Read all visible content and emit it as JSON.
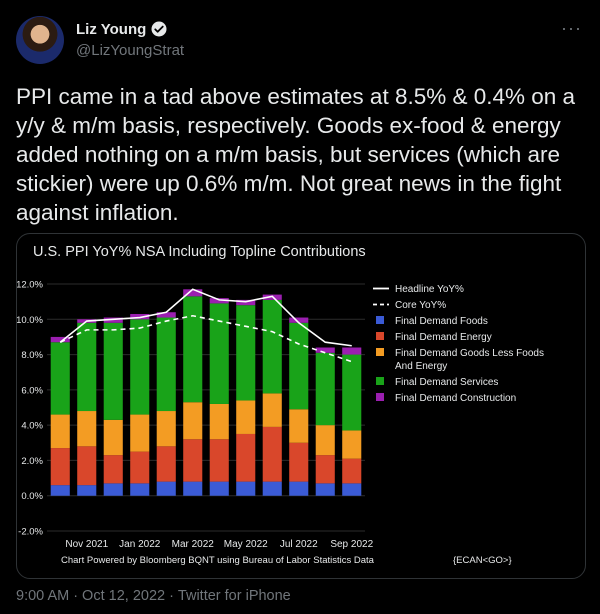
{
  "author": {
    "name": "Liz Young",
    "handle": "@LizYoungStrat",
    "more_icon": "more-horizontal-icon"
  },
  "tweet": {
    "text": "PPI came in a tad above estimates at 8.5% & 0.4% on a y/y & m/m basis, respectively. Goods ex-food & energy added nothing on a m/m basis, but services (which are stickier) were up 0.6% m/m. Not great news in the fight against inflation."
  },
  "footer": {
    "time": "9:00 AM",
    "date": "Oct 12, 2022",
    "client": "Twitter for iPhone",
    "sep": "·"
  },
  "chart_data": {
    "type": "bar",
    "title": "U.S. PPI YoY% NSA Including Topline Contributions",
    "note": "Chart Powered by Bloomberg BQNT using Bureau of Labor Statistics Data",
    "ticker": "{ECAN<GO>}",
    "ylim": [
      -2.0,
      12.0
    ],
    "yticks": [
      "-2.0%",
      "0.0%",
      "2.0%",
      "4.0%",
      "6.0%",
      "8.0%",
      "10.0%",
      "12.0%"
    ],
    "ytick_values": [
      -2,
      0,
      2,
      4,
      6,
      8,
      10,
      12
    ],
    "xtick_labels": [
      "Nov 2021",
      "Jan 2022",
      "Mar 2022",
      "May 2022",
      "Jul 2022",
      "Sep 2022"
    ],
    "xtick_indices": [
      1,
      3,
      5,
      7,
      9,
      11
    ],
    "categories": [
      "Oct 2021",
      "Nov 2021",
      "Dec 2021",
      "Jan 2022",
      "Feb 2022",
      "Mar 2022",
      "Apr 2022",
      "May 2022",
      "Jun 2022",
      "Jul 2022",
      "Aug 2022",
      "Sep 2022"
    ],
    "stack_series": [
      {
        "name": "Final Demand Foods",
        "color": "#3b5bd6",
        "values": [
          0.6,
          0.6,
          0.7,
          0.7,
          0.8,
          0.8,
          0.8,
          0.8,
          0.8,
          0.8,
          0.7,
          0.7
        ]
      },
      {
        "name": "Final Demand Energy",
        "color": "#d9472b",
        "values": [
          2.1,
          2.2,
          1.6,
          1.8,
          2.0,
          2.4,
          2.4,
          2.7,
          3.1,
          2.2,
          1.6,
          1.4
        ]
      },
      {
        "name": "Final Demand Goods Less Foods And Energy",
        "color": "#f39c23",
        "values": [
          1.9,
          2.0,
          2.0,
          2.1,
          2.0,
          2.1,
          2.0,
          1.9,
          1.9,
          1.9,
          1.7,
          1.6
        ]
      },
      {
        "name": "Final Demand Services",
        "color": "#19a319",
        "values": [
          4.1,
          5.0,
          5.5,
          5.4,
          5.3,
          6.0,
          5.7,
          5.4,
          5.3,
          4.9,
          4.1,
          4.3
        ]
      },
      {
        "name": "Final Demand Construction",
        "color": "#9b1fb0",
        "values": [
          0.3,
          0.2,
          0.3,
          0.3,
          0.3,
          0.4,
          0.3,
          0.3,
          0.3,
          0.3,
          0.3,
          0.4
        ]
      }
    ],
    "line_series": [
      {
        "name": "Headline YoY%",
        "color": "#ffffff",
        "dashed": false,
        "values": [
          8.7,
          9.9,
          10.0,
          10.1,
          10.4,
          11.7,
          11.1,
          11.0,
          11.3,
          9.8,
          8.7,
          8.5
        ]
      },
      {
        "name": "Core YoY%",
        "color": "#ffffff",
        "dashed": true,
        "values": [
          8.7,
          9.4,
          9.4,
          9.5,
          9.9,
          10.2,
          9.9,
          9.6,
          9.3,
          8.6,
          8.1,
          7.6
        ]
      }
    ],
    "legend_order": [
      "Headline YoY%",
      "Core YoY%",
      "Final Demand Foods",
      "Final Demand Energy",
      "Final Demand Goods Less Foods And Energy",
      "Final Demand Services",
      "Final Demand Construction"
    ],
    "legend_lines": {
      "Final Demand Goods Less Foods And Energy": [
        "Final Demand Goods Less Foods",
        "And Energy"
      ]
    },
    "legend_position": "right",
    "grid": true
  }
}
